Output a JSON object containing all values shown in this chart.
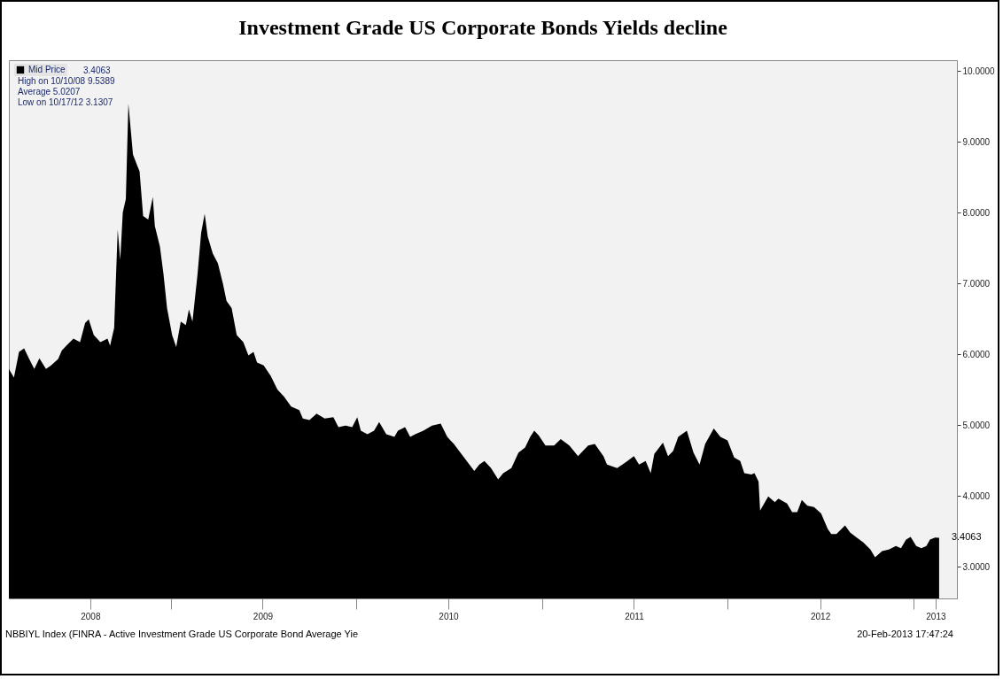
{
  "chart_data": {
    "type": "area",
    "title": "Investment Grade US Corporate Bonds Yields decline",
    "x": [
      "2008-02-18",
      "2008-02-28",
      "2008-03-09",
      "2008-03-19",
      "2008-03-29",
      "2008-04-08",
      "2008-04-18",
      "2008-05-01",
      "2008-05-11",
      "2008-05-25",
      "2008-06-01",
      "2008-06-10",
      "2008-06-24",
      "2008-07-07",
      "2008-07-17",
      "2008-07-24",
      "2008-08-03",
      "2008-08-16",
      "2008-08-30",
      "2008-09-04",
      "2008-09-12",
      "2008-09-19",
      "2008-09-24",
      "2008-09-29",
      "2008-10-05",
      "2008-10-10",
      "2008-10-19",
      "2008-10-27",
      "2008-11-01",
      "2008-11-08",
      "2008-11-18",
      "2008-11-27",
      "2008-12-01",
      "2008-12-11",
      "2008-12-18",
      "2008-12-25",
      "2009-01-04",
      "2009-01-12",
      "2009-01-21",
      "2009-01-31",
      "2009-02-06",
      "2009-02-13",
      "2009-02-23",
      "2009-03-02",
      "2009-03-09",
      "2009-03-15",
      "2009-03-25",
      "2009-04-04",
      "2009-04-14",
      "2009-04-21",
      "2009-05-01",
      "2009-05-11",
      "2009-05-24",
      "2009-06-03",
      "2009-06-13",
      "2009-06-20",
      "2009-07-03",
      "2009-07-17",
      "2009-07-30",
      "2009-08-12",
      "2009-08-26",
      "2009-09-11",
      "2009-09-18",
      "2009-10-01",
      "2009-10-15",
      "2009-10-31",
      "2009-11-17",
      "2009-11-27",
      "2009-12-11",
      "2009-12-24",
      "2010-01-03",
      "2010-01-10",
      "2010-01-23",
      "2010-02-05",
      "2010-02-15",
      "2010-03-01",
      "2010-03-17",
      "2010-03-24",
      "2010-04-07",
      "2010-04-17",
      "2010-04-27",
      "2010-05-13",
      "2010-05-30",
      "2010-06-16",
      "2010-06-29",
      "2010-07-12",
      "2010-08-01",
      "2010-08-21",
      "2010-08-31",
      "2010-09-10",
      "2010-09-23",
      "2010-10-07",
      "2010-10-17",
      "2010-11-02",
      "2010-11-16",
      "2010-11-29",
      "2010-12-09",
      "2010-12-17",
      "2010-12-26",
      "2011-01-08",
      "2011-01-25",
      "2011-02-07",
      "2011-02-24",
      "2011-03-13",
      "2011-04-02",
      "2011-04-15",
      "2011-05-02",
      "2011-05-09",
      "2011-05-29",
      "2011-06-14",
      "2011-07-01",
      "2011-07-11",
      "2011-07-24",
      "2011-08-03",
      "2011-08-10",
      "2011-08-27",
      "2011-09-06",
      "2011-09-16",
      "2011-09-26",
      "2011-10-13",
      "2011-10-26",
      "2011-11-07",
      "2011-11-18",
      "2011-12-05",
      "2011-12-18",
      "2012-01-01",
      "2012-01-14",
      "2012-01-26",
      "2012-02-03",
      "2012-02-17",
      "2012-02-23",
      "2012-03-02",
      "2012-03-05",
      "2012-03-21",
      "2012-04-03",
      "2012-04-10",
      "2012-04-27",
      "2012-05-07",
      "2012-05-17",
      "2012-05-26",
      "2012-06-06",
      "2012-06-19",
      "2012-07-03",
      "2012-07-16",
      "2012-07-23",
      "2012-08-02",
      "2012-08-19",
      "2012-08-29",
      "2012-09-11",
      "2012-09-24",
      "2012-10-08",
      "2012-10-17",
      "2012-10-31",
      "2012-11-13",
      "2012-11-27",
      "2012-12-07",
      "2012-12-17",
      "2012-12-26",
      "2013-01-06",
      "2013-01-16",
      "2013-01-26",
      "2013-02-02",
      "2013-02-12",
      "2013-02-20"
    ],
    "series": [
      {
        "name": "Mid Price",
        "color": "#000000",
        "values": [
          5.79,
          5.67,
          6.03,
          6.08,
          5.93,
          5.79,
          5.94,
          5.79,
          5.84,
          5.93,
          6.05,
          6.12,
          6.22,
          6.17,
          6.44,
          6.49,
          6.27,
          6.17,
          6.22,
          6.12,
          6.37,
          7.76,
          7.33,
          8.0,
          8.19,
          9.5389,
          8.82,
          8.67,
          8.58,
          7.95,
          7.9,
          8.22,
          7.81,
          7.52,
          7.13,
          6.65,
          6.27,
          6.1,
          6.46,
          6.41,
          6.63,
          6.46,
          7.13,
          7.71,
          7.98,
          7.66,
          7.42,
          7.28,
          6.99,
          6.75,
          6.65,
          6.27,
          6.17,
          5.98,
          6.03,
          5.88,
          5.84,
          5.69,
          5.5,
          5.4,
          5.26,
          5.21,
          5.09,
          5.07,
          5.16,
          5.09,
          5.11,
          4.97,
          4.99,
          4.97,
          5.11,
          4.92,
          4.87,
          4.92,
          5.04,
          4.87,
          4.83,
          4.92,
          4.97,
          4.83,
          4.87,
          4.92,
          4.99,
          5.02,
          4.83,
          4.73,
          4.54,
          4.35,
          4.44,
          4.49,
          4.39,
          4.23,
          4.32,
          4.39,
          4.61,
          4.68,
          4.83,
          4.92,
          4.85,
          4.71,
          4.71,
          4.8,
          4.71,
          4.56,
          4.71,
          4.73,
          4.56,
          4.44,
          4.39,
          4.47,
          4.56,
          4.44,
          4.49,
          4.32,
          4.59,
          4.75,
          4.56,
          4.63,
          4.83,
          4.92,
          4.61,
          4.44,
          4.73,
          4.95,
          4.83,
          4.78,
          4.54,
          4.49,
          4.32,
          4.3,
          4.32,
          4.2,
          3.79,
          3.99,
          3.91,
          3.96,
          3.89,
          3.77,
          3.77,
          3.94,
          3.86,
          3.84,
          3.75,
          3.53,
          3.46,
          3.46,
          3.58,
          3.48,
          3.41,
          3.34,
          3.24,
          3.1307,
          3.22,
          3.24,
          3.29,
          3.26,
          3.38,
          3.42,
          3.29,
          3.26,
          3.29,
          3.38,
          3.41,
          3.4063
        ]
      }
    ],
    "xlim": [
      "2008-02-18",
      "2013-03-27"
    ],
    "xticks": [
      {
        "value": "2008-07-27",
        "label": "2008"
      },
      {
        "value": "2009-01-01",
        "label": null
      },
      {
        "value": "2009-07-01",
        "label": "2009"
      },
      {
        "value": "2010-01-01",
        "label": null
      },
      {
        "value": "2010-07-01",
        "label": "2010"
      },
      {
        "value": "2011-01-01",
        "label": null
      },
      {
        "value": "2011-07-01",
        "label": "2011"
      },
      {
        "value": "2012-01-01",
        "label": null
      },
      {
        "value": "2012-07-01",
        "label": "2012"
      },
      {
        "value": "2013-01-01",
        "label": null
      },
      {
        "value": "2013-02-13",
        "label": "2013"
      }
    ],
    "ylim": [
      2.55,
      10.15
    ],
    "yticks": [
      {
        "value": 3,
        "label": "3.0000"
      },
      {
        "value": 4,
        "label": "4.0000"
      },
      {
        "value": 5,
        "label": "5.0000"
      },
      {
        "value": 6,
        "label": "6.0000"
      },
      {
        "value": 7,
        "label": "7.0000"
      },
      {
        "value": 8,
        "label": "8.0000"
      },
      {
        "value": 9,
        "label": "9.0000"
      },
      {
        "value": 10,
        "label": "10.0000"
      }
    ],
    "grid": false,
    "legend": "top left",
    "annotations": [
      "3.4063",
      "High on 10/10/08 9.5389",
      "Average 5.0207",
      "Low on 10/17/12 3.1307",
      "NBBIYL Index (FINRA - Active Investment Grade US Corporate Bond Average Yie",
      "20-Feb-2013 17:47:24",
      {
        "text": "3.4063",
        "x": "2013-02-20",
        "y": 3.4063
      }
    ]
  }
}
